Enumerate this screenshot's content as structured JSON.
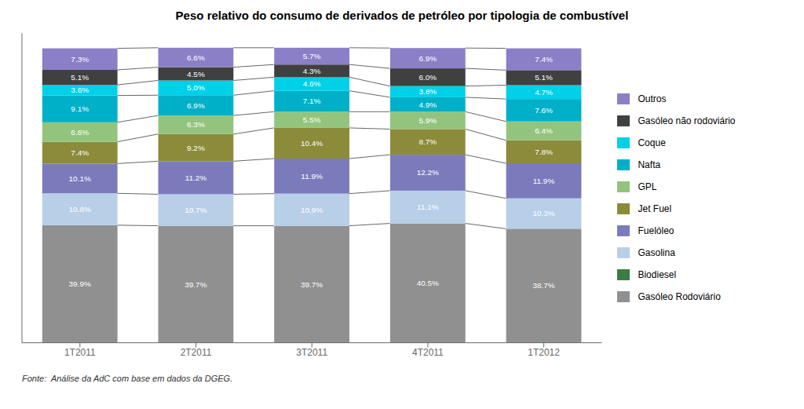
{
  "chart_data": {
    "type": "bar",
    "title": "Peso relativo do consumo de derivados de petróleo por tipologia de combustível",
    "categories": [
      "1T2011",
      "2T2011",
      "3T2011",
      "4T2011",
      "1T2012"
    ],
    "stacked": true,
    "data_labels": true,
    "grid": false,
    "legend": "right",
    "tick_labels": "x",
    "ylim": [
      0,
      105
    ],
    "annotations": [
      "Fonte:  Análise da AdC com base em dados da DGEG."
    ],
    "series": [
      {
        "name": "Gasóleo Rodoviário",
        "color": "#909090",
        "values": [
          39.9,
          39.7,
          39.7,
          40.5,
          38.7
        ],
        "value_labels": [
          "39.9%",
          "39.7%",
          "39.7%",
          "40.5%",
          "38.7%"
        ]
      },
      {
        "name": "Biodiesel",
        "color": "#3a7d44",
        "values": [
          0.0,
          0.0,
          0.0,
          0.0,
          0.0
        ],
        "value_labels": [
          null,
          null,
          null,
          null,
          null
        ]
      },
      {
        "name": "Gasolina",
        "color": "#b8cfe8",
        "values": [
          10.8,
          10.7,
          10.9,
          11.1,
          10.3
        ],
        "value_labels": [
          "10.8%",
          "10.7%",
          "10.9%",
          "11.1%",
          "10.3%"
        ]
      },
      {
        "name": "Fuelóleo",
        "color": "#7b7bbc",
        "values": [
          10.1,
          11.2,
          11.9,
          12.2,
          11.9
        ],
        "value_labels": [
          "10.1%",
          "11.2%",
          "11.9%",
          "12.2%",
          "11.9%"
        ]
      },
      {
        "name": "Jet Fuel",
        "color": "#8b8b3a",
        "values": [
          7.4,
          9.2,
          10.4,
          8.7,
          7.8
        ],
        "value_labels": [
          "7.4%",
          "9.2%",
          "10.4%",
          "8.7%",
          "7.8%"
        ]
      },
      {
        "name": "GPL",
        "color": "#93c47d",
        "values": [
          6.6,
          6.3,
          5.5,
          5.9,
          6.4
        ],
        "value_labels": [
          "6.6%",
          "6.3%",
          "5.5%",
          "5.9%",
          "6.4%"
        ]
      },
      {
        "name": "Nafta",
        "color": "#00b0c8",
        "values": [
          9.1,
          6.9,
          7.1,
          4.9,
          7.6
        ],
        "value_labels": [
          "9.1%",
          "6.9%",
          "7.1%",
          "4.9%",
          "7.6%"
        ]
      },
      {
        "name": "Coque",
        "color": "#00d0e8",
        "values": [
          3.6,
          5.0,
          4.6,
          3.8,
          4.7
        ],
        "value_labels": [
          "3.6%",
          "5.0%",
          "4.6%",
          "3.8%",
          "4.7%"
        ]
      },
      {
        "name": "Gasóleo não rodoviário",
        "color": "#404040",
        "values": [
          5.1,
          4.5,
          4.3,
          6.0,
          5.1
        ],
        "value_labels": [
          "5.1%",
          "4.5%",
          "4.3%",
          "6.0%",
          "5.1%"
        ]
      },
      {
        "name": "Outros",
        "color": "#8b7fc8",
        "values": [
          7.3,
          6.6,
          5.7,
          6.9,
          7.4
        ],
        "value_labels": [
          "7.3%",
          "6.6%",
          "5.7%",
          "6.9%",
          "7.4%"
        ]
      }
    ]
  }
}
